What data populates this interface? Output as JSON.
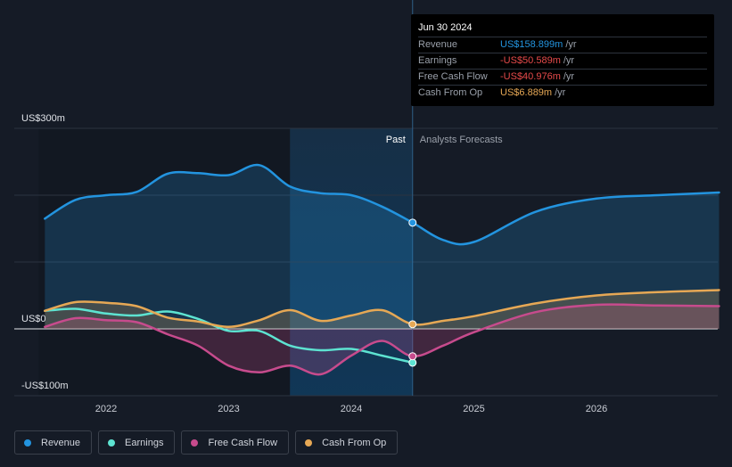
{
  "chart_data": {
    "type": "line",
    "y_unit": "US$ m",
    "ylim": [
      -100,
      300
    ],
    "y_ticks": [
      {
        "value": 300,
        "label": "US$300m"
      },
      {
        "value": 0,
        "label": "US$0"
      },
      {
        "value": -100,
        "label": "-US$100m"
      }
    ],
    "x_range": [
      2021.45,
      2027.0
    ],
    "x_ticks": [
      {
        "value": 2022,
        "label": "2022"
      },
      {
        "value": 2023,
        "label": "2023"
      },
      {
        "value": 2024,
        "label": "2024"
      },
      {
        "value": 2025,
        "label": "2025"
      },
      {
        "value": 2026,
        "label": "2026"
      }
    ],
    "past_label": "Past",
    "forecast_label": "Analysts Forecasts",
    "past_region_start": 2023.5,
    "divider_x": 2024.5,
    "series": [
      {
        "name": "Revenue",
        "color": "#2394df",
        "fill": true,
        "points": [
          [
            2021.5,
            165
          ],
          [
            2021.75,
            193
          ],
          [
            2022.0,
            200
          ],
          [
            2022.25,
            205
          ],
          [
            2022.5,
            232
          ],
          [
            2022.75,
            233
          ],
          [
            2023.0,
            230
          ],
          [
            2023.25,
            245
          ],
          [
            2023.5,
            213
          ],
          [
            2023.75,
            203
          ],
          [
            2024.0,
            200
          ],
          [
            2024.25,
            183
          ],
          [
            2024.5,
            158.899
          ],
          [
            2024.75,
            133
          ],
          [
            2025.0,
            130
          ],
          [
            2025.5,
            175
          ],
          [
            2026.0,
            195
          ],
          [
            2026.5,
            200
          ],
          [
            2027.0,
            204
          ]
        ]
      },
      {
        "name": "Earnings",
        "color": "#5de3d1",
        "fill": false,
        "points": [
          [
            2021.5,
            27
          ],
          [
            2021.75,
            30
          ],
          [
            2022.0,
            23
          ],
          [
            2022.25,
            20
          ],
          [
            2022.5,
            26
          ],
          [
            2022.75,
            15
          ],
          [
            2023.0,
            -3
          ],
          [
            2023.25,
            -3
          ],
          [
            2023.5,
            -25
          ],
          [
            2023.75,
            -32
          ],
          [
            2024.0,
            -30
          ],
          [
            2024.25,
            -40
          ],
          [
            2024.5,
            -50.589
          ]
        ]
      },
      {
        "name": "Free Cash Flow",
        "color": "#c74b8d",
        "fill": true,
        "points": [
          [
            2021.5,
            3
          ],
          [
            2021.75,
            16
          ],
          [
            2022.0,
            13
          ],
          [
            2022.25,
            10
          ],
          [
            2022.5,
            -8
          ],
          [
            2022.75,
            -25
          ],
          [
            2023.0,
            -55
          ],
          [
            2023.25,
            -65
          ],
          [
            2023.5,
            -55
          ],
          [
            2023.75,
            -68
          ],
          [
            2024.0,
            -40
          ],
          [
            2024.25,
            -18
          ],
          [
            2024.5,
            -40.976
          ],
          [
            2024.75,
            -25
          ],
          [
            2025.0,
            -5
          ],
          [
            2025.5,
            25
          ],
          [
            2026.0,
            36
          ],
          [
            2026.5,
            35
          ],
          [
            2027.0,
            34
          ]
        ]
      },
      {
        "name": "Cash From Op",
        "color": "#e6a855",
        "fill": true,
        "points": [
          [
            2021.5,
            27
          ],
          [
            2021.75,
            40
          ],
          [
            2022.0,
            39
          ],
          [
            2022.25,
            34
          ],
          [
            2022.5,
            17
          ],
          [
            2022.75,
            11
          ],
          [
            2023.0,
            3
          ],
          [
            2023.25,
            13
          ],
          [
            2023.5,
            28
          ],
          [
            2023.75,
            12
          ],
          [
            2024.0,
            20
          ],
          [
            2024.25,
            28
          ],
          [
            2024.5,
            6.889
          ],
          [
            2024.75,
            12
          ],
          [
            2025.0,
            19
          ],
          [
            2025.5,
            38
          ],
          [
            2026.0,
            50
          ],
          [
            2026.5,
            55
          ],
          [
            2027.0,
            58
          ]
        ]
      }
    ]
  },
  "tooltip": {
    "date": "Jun 30 2024",
    "rows": [
      {
        "label": "Revenue",
        "value": "US$158.899m",
        "unit": "/yr",
        "color": "#2394df"
      },
      {
        "label": "Earnings",
        "value": "-US$50.589m",
        "unit": "/yr",
        "color": "#e64a4a"
      },
      {
        "label": "Free Cash Flow",
        "value": "-US$40.976m",
        "unit": "/yr",
        "color": "#e64a4a"
      },
      {
        "label": "Cash From Op",
        "value": "US$6.889m",
        "unit": "/yr",
        "color": "#e6a855"
      }
    ]
  },
  "legend": [
    {
      "label": "Revenue",
      "color": "#2394df"
    },
    {
      "label": "Earnings",
      "color": "#5de3d1"
    },
    {
      "label": "Free Cash Flow",
      "color": "#c74b8d"
    },
    {
      "label": "Cash From Op",
      "color": "#e6a855"
    }
  ]
}
